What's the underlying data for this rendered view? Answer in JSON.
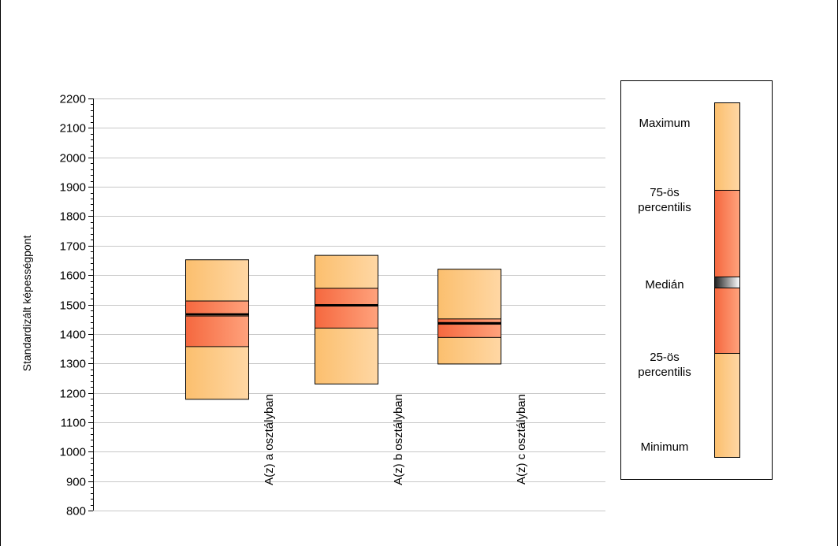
{
  "chart_data": {
    "type": "boxplot",
    "ylabel": "Standardizált képességpont",
    "xlabel": "",
    "ylim": [
      800,
      2200
    ],
    "yticks": [
      800,
      900,
      1000,
      1100,
      1200,
      1300,
      1400,
      1500,
      1600,
      1700,
      1800,
      1900,
      2000,
      2100,
      2200
    ],
    "grid": true,
    "legend_position": "right",
    "categories": [
      "A(z) a osztályban",
      "A(z) b osztályban",
      "A(z) c osztályban"
    ],
    "boxes": [
      {
        "category": "A(z) a osztályban",
        "min": 1178,
        "q1": 1357,
        "median": 1466,
        "q3": 1512,
        "max": 1652,
        "median_band": [
          1461,
          1469
        ]
      },
      {
        "category": "A(z) b osztályban",
        "min": 1230,
        "q1": 1420,
        "median": 1498,
        "q3": 1555,
        "max": 1667,
        "median_band": [
          1497,
          1500
        ]
      },
      {
        "category": "A(z) c osztályban",
        "min": 1298,
        "q1": 1388,
        "median": 1436,
        "q3": 1451,
        "max": 1620,
        "median_band": [
          1433,
          1439
        ]
      }
    ],
    "colors": {
      "outer": "#fbbf6e",
      "outer_light": "#ffd7a4",
      "inner": "#f5683f",
      "inner_light": "#ffa27c",
      "median": "#000000",
      "grid": "#c8c8c8"
    }
  },
  "legend": {
    "maximum": "Maximum",
    "q3_line1": "75-ös",
    "q3_line2": "percentilis",
    "median": "Medián",
    "q1_line1": "25-ös",
    "q1_line2": "percentilis",
    "minimum": "Minimum"
  }
}
